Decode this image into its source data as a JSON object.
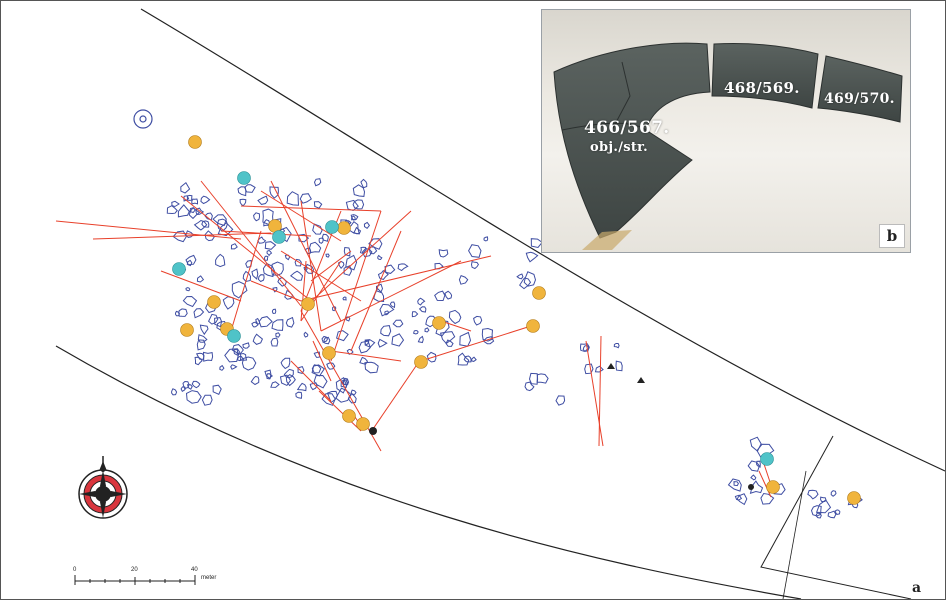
{
  "inset": {
    "labels": {
      "sherd_466": "466/567.",
      "sherd_466_sub": "obj./str.",
      "sherd_468": "468/569.",
      "sherd_469": "469/570."
    },
    "panel_label": "b"
  },
  "map": {
    "panel_label": "a",
    "scale_bar": {
      "ticks": [
        "0",
        "20",
        "40"
      ],
      "unit": "meter"
    },
    "colors": {
      "features": "#3f4ea3",
      "refits": "#e8402a",
      "sherd_points_orange": "#f0b43c",
      "sherd_points_cyan": "#4fc3c8",
      "boundary": "#222222"
    },
    "icons": [
      "north-arrow-icon",
      "compass-rose-icon"
    ]
  }
}
